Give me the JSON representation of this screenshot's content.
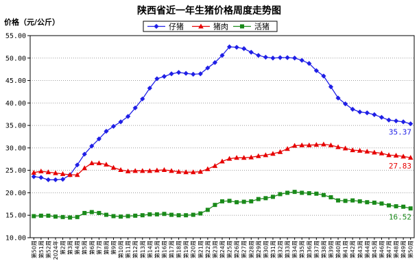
{
  "chart_data": {
    "type": "line",
    "title": "陕西省近一年生猪价格周度走势图",
    "ylabel": "价格（元/公斤）",
    "xlabel": "",
    "ylim": [
      10,
      55
    ],
    "ytick_step": 5,
    "grid": true,
    "legend_position": "top-center",
    "x": [
      "第50周",
      "第51周",
      "第52周",
      "2024年",
      "第2周",
      "第3周",
      "第4周",
      "第5周",
      "第6周",
      "第7周",
      "第8周",
      "第9周",
      "第10周",
      "第11周",
      "第12周",
      "第13周",
      "第14周",
      "第15周",
      "第16周",
      "第17周",
      "第18周",
      "第19周",
      "第20周",
      "第21周",
      "第22周",
      "第23周",
      "第24周",
      "第25周",
      "第26周",
      "第27周",
      "第28周",
      "第29周",
      "第30周",
      "第31周",
      "第32周",
      "第33周",
      "第34周",
      "第35周",
      "第36周",
      "第37周",
      "第38周",
      "第39周",
      "第40周",
      "第41周",
      "第42周",
      "第43周",
      "第44周",
      "第45周",
      "第46周",
      "第47周",
      "第48周",
      "第49周",
      "第50周"
    ],
    "series": [
      {
        "name": "仔猪",
        "color": "#1f1fe6",
        "marker": "diamond",
        "end_label": "35.37",
        "values": [
          23.6,
          23.4,
          22.9,
          22.9,
          23.0,
          24.0,
          26.2,
          28.6,
          30.4,
          32.0,
          33.7,
          34.8,
          35.8,
          37.0,
          38.9,
          40.9,
          43.3,
          45.4,
          45.9,
          46.5,
          46.8,
          46.6,
          46.4,
          46.5,
          47.8,
          49.0,
          50.6,
          52.5,
          52.4,
          52.1,
          51.3,
          50.6,
          50.2,
          50.0,
          50.1,
          50.1,
          50.0,
          49.5,
          48.8,
          47.2,
          46.0,
          43.6,
          41.1,
          39.8,
          38.6,
          38.0,
          37.8,
          37.4,
          36.8,
          36.2,
          36.0,
          35.8,
          35.37
        ]
      },
      {
        "name": "猪肉",
        "color": "#e60000",
        "marker": "triangle",
        "end_label": "27.83",
        "values": [
          24.5,
          24.8,
          24.6,
          24.4,
          24.2,
          24.0,
          24.0,
          25.5,
          26.6,
          26.6,
          26.3,
          25.6,
          25.1,
          24.8,
          24.9,
          24.9,
          24.9,
          25.0,
          25.1,
          24.9,
          24.7,
          24.6,
          24.6,
          24.7,
          25.3,
          26.0,
          27.0,
          27.6,
          27.8,
          27.8,
          27.9,
          28.2,
          28.4,
          28.7,
          29.1,
          29.8,
          30.5,
          30.6,
          30.6,
          30.7,
          30.8,
          30.6,
          30.2,
          29.9,
          29.5,
          29.4,
          29.2,
          29.0,
          28.8,
          28.4,
          28.3,
          28.1,
          27.83
        ]
      },
      {
        "name": "活猪",
        "color": "#1a8a1a",
        "marker": "square",
        "end_label": "16.52",
        "values": [
          14.8,
          14.9,
          14.9,
          14.7,
          14.6,
          14.5,
          14.6,
          15.5,
          15.7,
          15.5,
          15.1,
          14.8,
          14.7,
          14.8,
          14.9,
          15.0,
          15.2,
          15.2,
          15.3,
          15.1,
          15.0,
          15.0,
          15.1,
          15.4,
          16.2,
          17.3,
          18.1,
          18.2,
          17.9,
          18.0,
          18.1,
          18.6,
          18.8,
          19.1,
          19.7,
          20.0,
          20.2,
          20.0,
          19.9,
          19.8,
          19.5,
          19.0,
          18.3,
          18.2,
          18.3,
          18.1,
          17.9,
          17.8,
          17.6,
          17.2,
          17.0,
          16.9,
          16.52
        ]
      }
    ]
  }
}
